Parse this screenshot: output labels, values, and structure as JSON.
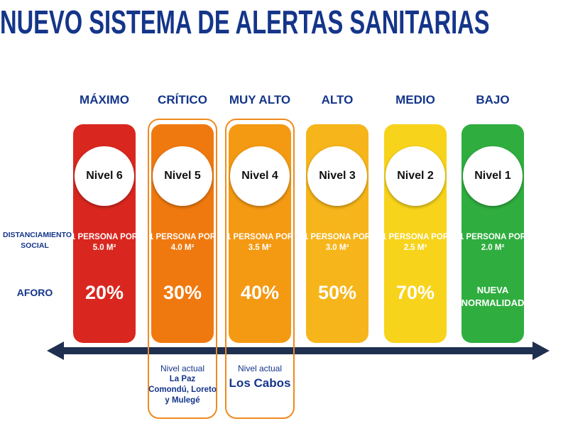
{
  "title": "NUEVO SISTEMA DE ALERTAS SANITARIAS",
  "row_labels": {
    "distancing": "DISTANCIAMIENTO SOCIAL",
    "capacity": "AFORO"
  },
  "levels": [
    {
      "name": "MÁXIMO",
      "level": "Nivel 6",
      "distancing": [
        "1 PERSONA POR",
        "5.0 M²"
      ],
      "capacity": "20%",
      "color": "#d9271f"
    },
    {
      "name": "CRÍTICO",
      "level": "Nivel 5",
      "distancing": [
        "1 PERSONA POR",
        "4.0 M²"
      ],
      "capacity": "30%",
      "color": "#f0790f",
      "current_note": {
        "label": "Nivel actual",
        "places": [
          "La Paz",
          "Comondú, Loreto",
          "y Mulegé"
        ]
      }
    },
    {
      "name": "MUY ALTO",
      "level": "Nivel 4",
      "distancing": [
        "1 PERSONA POR",
        "3.5 M²"
      ],
      "capacity": "40%",
      "color": "#f49912",
      "current_note": {
        "label": "Nivel actual",
        "places": [
          "Los Cabos"
        ]
      }
    },
    {
      "name": "ALTO",
      "level": "Nivel 3",
      "distancing": [
        "1 PERSONA POR",
        "3.0 M²"
      ],
      "capacity": "50%",
      "color": "#f6b51a"
    },
    {
      "name": "MEDIO",
      "level": "Nivel 2",
      "distancing": [
        "1 PERSONA POR",
        "2.5 M²"
      ],
      "capacity": "70%",
      "color": "#f7d31b"
    },
    {
      "name": "BAJO",
      "level": "Nivel 1",
      "distancing": [
        "1 PERSONA POR",
        "2.0 M²"
      ],
      "capacity": "NUEVA NORMALIDAD",
      "color": "#2fae3f"
    }
  ]
}
